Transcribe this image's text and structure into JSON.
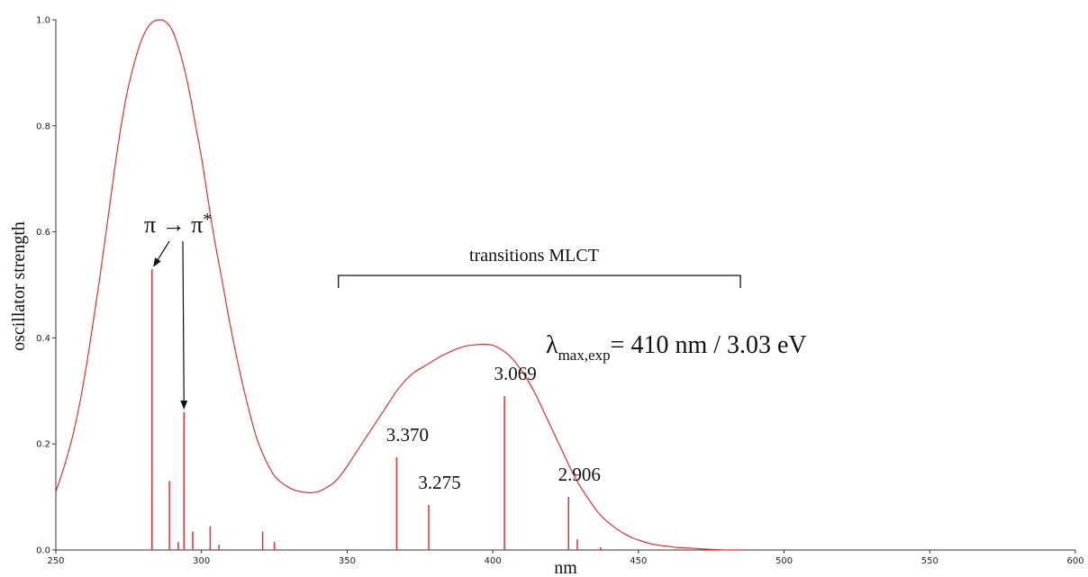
{
  "chart_data": {
    "type": "line",
    "xlabel": "nm",
    "ylabel": "oscillator strength",
    "xlim": [
      250,
      600
    ],
    "ylim": [
      0,
      1.0
    ],
    "x_ticks": [
      250,
      300,
      350,
      400,
      450,
      500,
      550,
      600
    ],
    "y_ticks": [
      0.0,
      0.2,
      0.4,
      0.6,
      0.8,
      1.0
    ],
    "x_tick_labels": [
      "250",
      "300",
      "350",
      "400",
      "450",
      "500",
      "550",
      "600"
    ],
    "y_tick_labels": [
      "0.0",
      "0.2",
      "0.4",
      "0.6",
      "0.8",
      "1.0"
    ],
    "grid": false,
    "line_color": "#e03030",
    "spectrum": {
      "x": [
        250,
        253,
        256,
        259,
        262,
        265,
        268,
        271,
        274,
        277,
        280,
        283,
        286,
        288,
        290,
        292,
        294,
        296,
        298,
        300,
        302,
        304,
        307,
        310,
        313,
        316,
        319,
        322,
        325,
        328,
        331,
        334,
        337,
        340,
        343,
        346,
        349,
        352,
        355,
        358,
        361,
        364,
        367,
        370,
        373,
        376,
        379,
        382,
        385,
        388,
        391,
        394,
        397,
        400,
        403,
        406,
        409,
        412,
        415,
        418,
        421,
        424,
        427,
        430,
        433,
        436,
        439,
        442,
        445,
        448,
        451,
        454,
        457,
        460,
        463,
        466,
        469,
        472,
        475,
        478,
        481,
        484,
        486
      ],
      "y": [
        0.11,
        0.16,
        0.22,
        0.3,
        0.4,
        0.51,
        0.63,
        0.75,
        0.85,
        0.92,
        0.97,
        0.995,
        1.0,
        0.995,
        0.98,
        0.95,
        0.91,
        0.86,
        0.8,
        0.74,
        0.67,
        0.6,
        0.51,
        0.42,
        0.34,
        0.27,
        0.21,
        0.17,
        0.14,
        0.125,
        0.115,
        0.11,
        0.108,
        0.11,
        0.118,
        0.13,
        0.15,
        0.175,
        0.2,
        0.225,
        0.25,
        0.275,
        0.3,
        0.32,
        0.335,
        0.345,
        0.355,
        0.365,
        0.373,
        0.38,
        0.385,
        0.387,
        0.388,
        0.386,
        0.378,
        0.365,
        0.345,
        0.32,
        0.29,
        0.255,
        0.22,
        0.185,
        0.15,
        0.12,
        0.095,
        0.072,
        0.055,
        0.042,
        0.031,
        0.023,
        0.017,
        0.012,
        0.009,
        0.007,
        0.005,
        0.004,
        0.003,
        0.002,
        0.001,
        0.0005,
        0.0,
        0.0,
        0.0
      ]
    },
    "sticks": [
      {
        "x": 283,
        "y": 0.53
      },
      {
        "x": 289,
        "y": 0.13
      },
      {
        "x": 292,
        "y": 0.015
      },
      {
        "x": 294,
        "y": 0.26
      },
      {
        "x": 297,
        "y": 0.035
      },
      {
        "x": 303,
        "y": 0.045
      },
      {
        "x": 306,
        "y": 0.01
      },
      {
        "x": 321,
        "y": 0.035
      },
      {
        "x": 325,
        "y": 0.015
      },
      {
        "x": 367,
        "y": 0.175
      },
      {
        "x": 378,
        "y": 0.085
      },
      {
        "x": 404,
        "y": 0.29
      },
      {
        "x": 426,
        "y": 0.1
      },
      {
        "x": 429,
        "y": 0.02
      },
      {
        "x": 437,
        "y": 0.005
      }
    ],
    "peak_labels": [
      {
        "text": "3.370",
        "x": 367,
        "y": 0.175
      },
      {
        "text": "3.275",
        "x": 378,
        "y": 0.085
      },
      {
        "text": "3.069",
        "x": 404,
        "y": 0.29
      },
      {
        "text": "2.906",
        "x": 426,
        "y": 0.1
      }
    ],
    "annotations": {
      "pi_label_left": "π → π",
      "pi_label_star": "*",
      "mlct_label": "transitions MLCT",
      "mlct_range": [
        347,
        485
      ],
      "lambda_symbol": "λ",
      "lambda_sub": "max,exp",
      "lambda_text": "= 410 nm / 3.03 eV"
    }
  }
}
